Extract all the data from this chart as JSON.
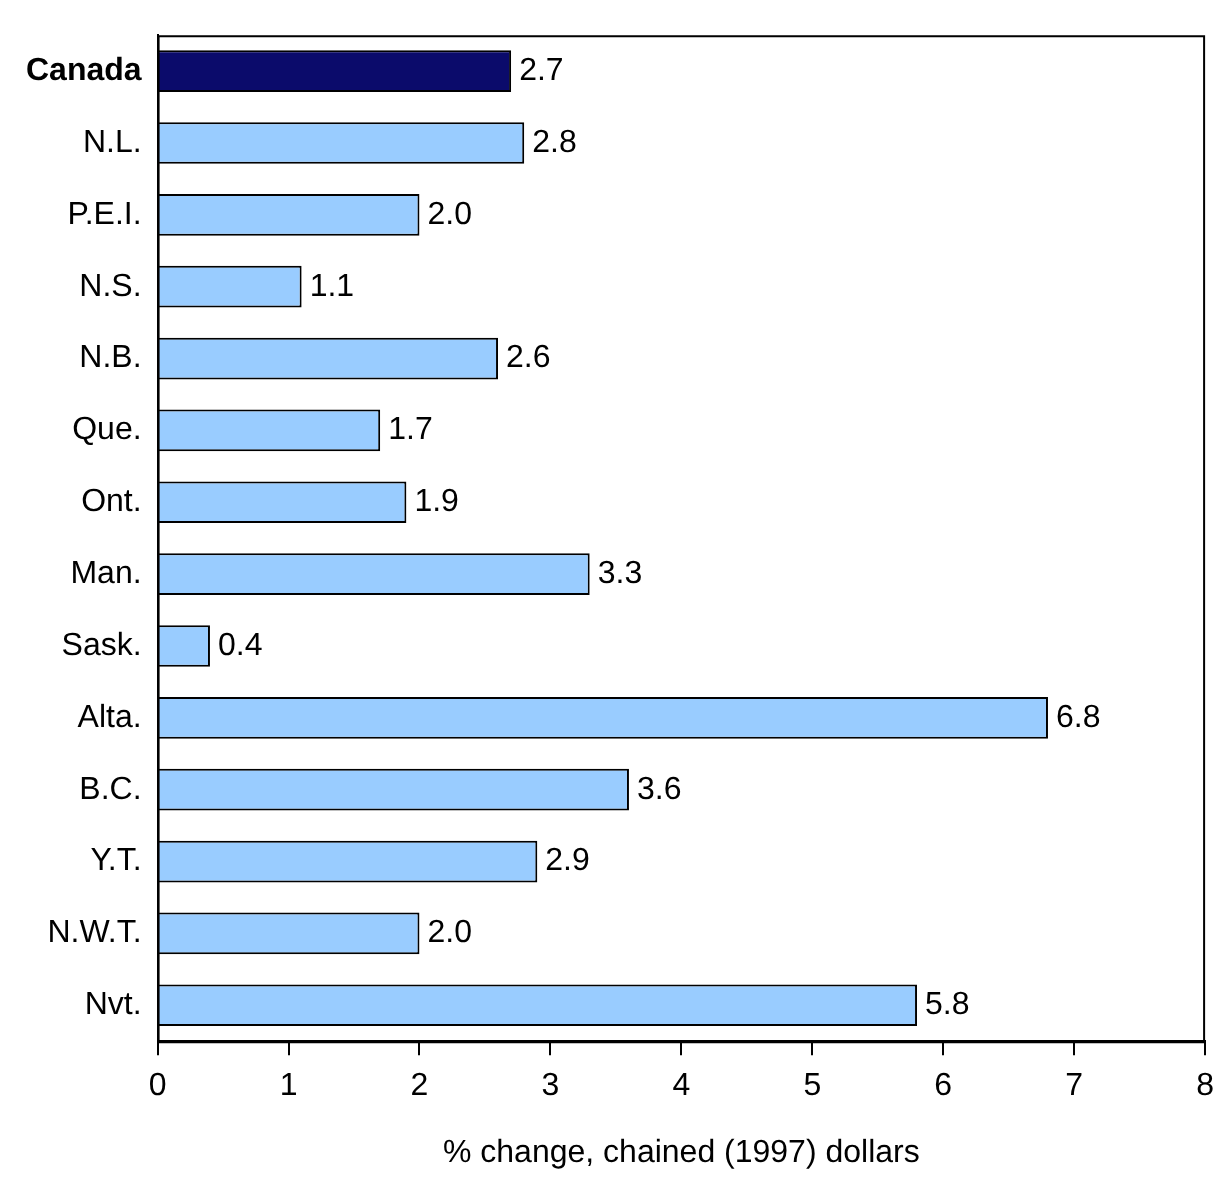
{
  "chart_data": {
    "type": "bar",
    "orientation": "horizontal",
    "xlabel": "% change, chained (1997) dollars",
    "categories": [
      "Canada",
      "N.L.",
      "P.E.I.",
      "N.S.",
      "N.B.",
      "Que.",
      "Ont.",
      "Man.",
      "Sask.",
      "Alta.",
      "B.C.",
      "Y.T.",
      "N.W.T.",
      "Nvt."
    ],
    "values": [
      2.7,
      2.8,
      2.0,
      1.1,
      2.6,
      1.7,
      1.9,
      3.3,
      0.4,
      6.8,
      3.6,
      2.9,
      2.0,
      5.8
    ],
    "colors": [
      "#0b0b6b",
      "#99ccff",
      "#99ccff",
      "#99ccff",
      "#99ccff",
      "#99ccff",
      "#99ccff",
      "#99ccff",
      "#99ccff",
      "#99ccff",
      "#99ccff",
      "#99ccff",
      "#99ccff",
      "#99ccff"
    ],
    "value_labels": [
      "2.7",
      "2.8",
      "2.0",
      "1.1",
      "2.6",
      "1.7",
      "1.9",
      "3.3",
      "0.4",
      "6.8",
      "3.6",
      "2.9",
      "2.0",
      "5.8"
    ],
    "xlim": [
      0,
      8
    ],
    "xticks": [
      0,
      1,
      2,
      3,
      4,
      5,
      6,
      7,
      8
    ],
    "grid": false,
    "legend": false
  }
}
